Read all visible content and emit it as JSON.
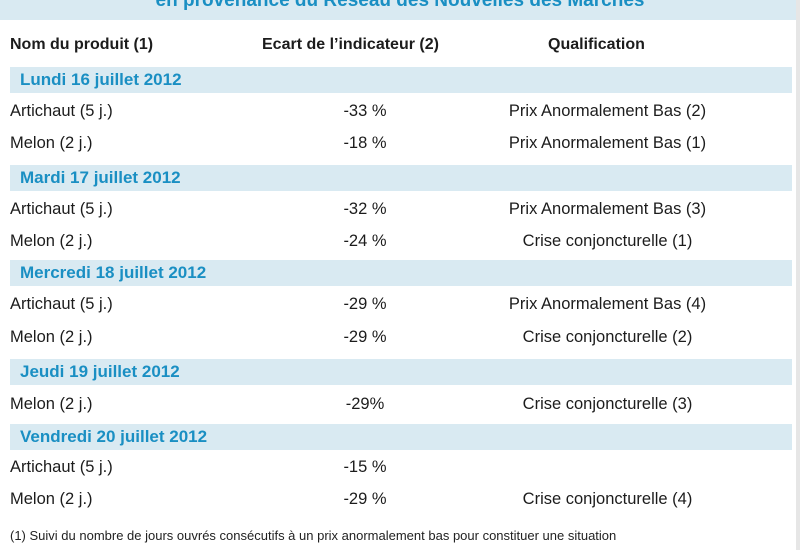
{
  "header_banner": "en provenance du Réseau des Nouvelles des Marchés",
  "columns": {
    "product": "Nom du produit (1)",
    "gap": "Ecart de l’indicateur (2)",
    "qualification": "Qualification"
  },
  "sections": [
    {
      "date": "Lundi 16 juillet 2012",
      "rows": [
        {
          "product": "Artichaut (5 j.)",
          "gap": "-33 %",
          "qualification": "Prix Anormalement Bas (2)"
        },
        {
          "product": "Melon (2 j.)",
          "gap": "-18 %",
          "qualification": "Prix Anormalement Bas (1)"
        }
      ]
    },
    {
      "date": "Mardi 17 juillet 2012",
      "rows": [
        {
          "product": "Artichaut (5 j.)",
          "gap": "-32 %",
          "qualification": "Prix Anormalement Bas (3)"
        },
        {
          "product": "Melon (2 j.)",
          "gap": "-24 %",
          "qualification": "Crise conjoncturelle (1)"
        }
      ]
    },
    {
      "date": "Mercredi 18 juillet 2012",
      "rows": [
        {
          "product": "Artichaut (5 j.)",
          "gap": "-29 %",
          "qualification": "Prix Anormalement Bas (4)"
        },
        {
          "product": "Melon (2 j.)",
          "gap": "-29 %",
          "qualification": "Crise conjoncturelle (2)"
        }
      ]
    },
    {
      "date": "Jeudi 19 juillet 2012",
      "rows": [
        {
          "product": "Melon (2 j.)",
          "gap": "-29%",
          "qualification": "Crise conjoncturelle (3)"
        }
      ]
    },
    {
      "date": "Vendredi 20 juillet 2012",
      "rows": [
        {
          "product": "Artichaut (5 j.)",
          "gap": "-15 %",
          "qualification": ""
        },
        {
          "product": "Melon (2 j.)",
          "gap": "-29 %",
          "qualification": "Crise conjoncturelle (4)"
        }
      ]
    }
  ],
  "footnote": "(1) Suivi du nombre de jours ouvrés consécutifs à un prix anormalement bas pour constituer une situation"
}
